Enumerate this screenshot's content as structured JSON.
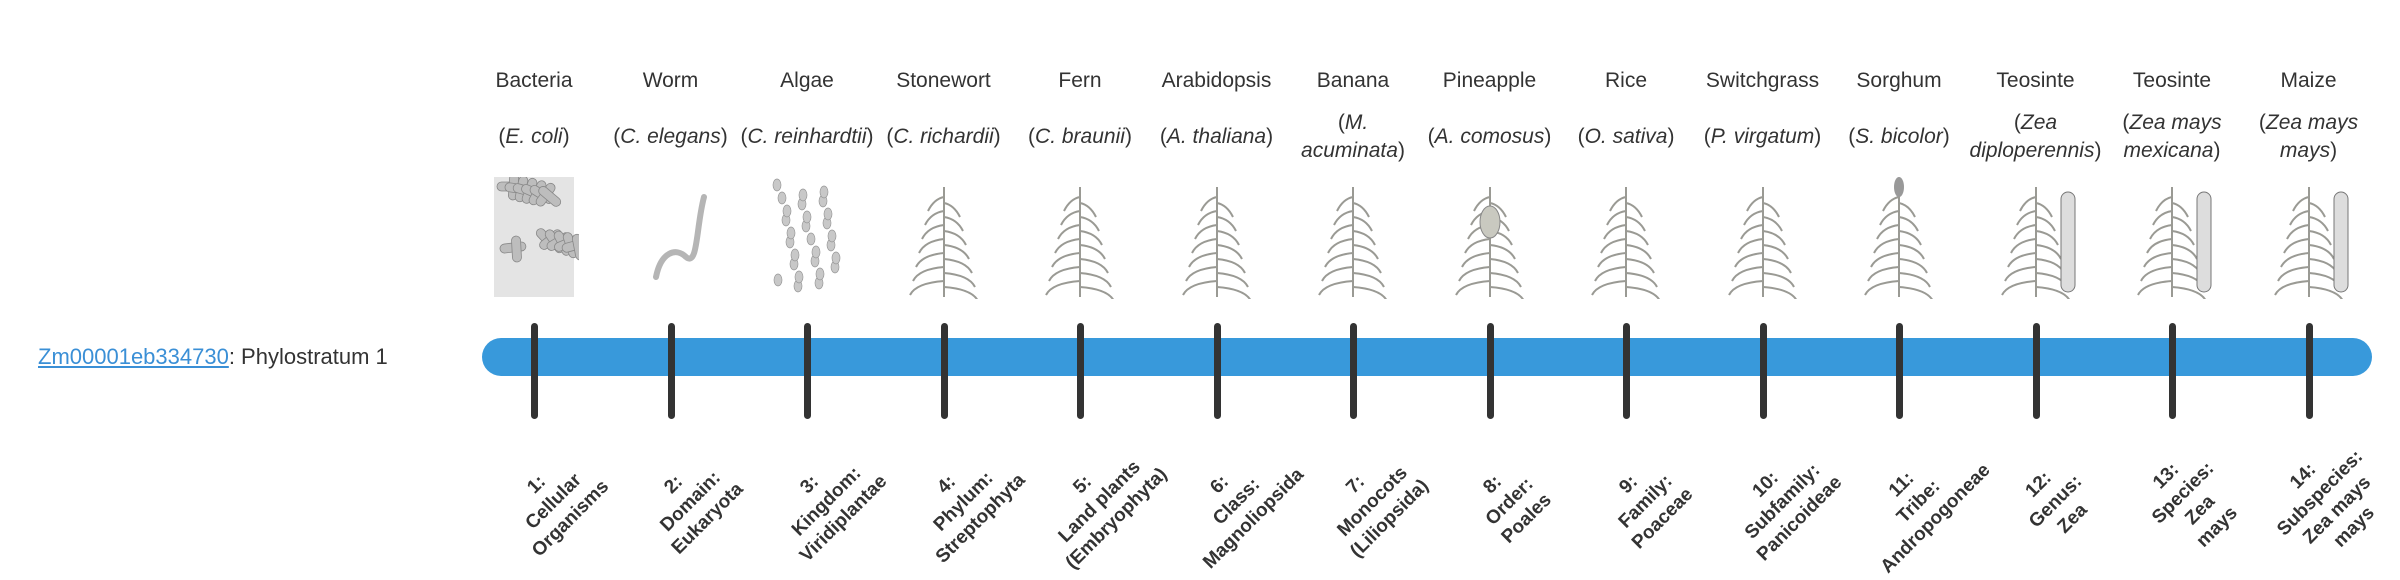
{
  "gene": {
    "id": "Zm00001eb334730",
    "suffix": ": Phylostratum 1",
    "link_color": "#3a8fd6"
  },
  "bar_color": "#3899db",
  "strata": [
    {
      "common": "Bacteria",
      "sci": "E. coli",
      "icon": "bacteria-icon",
      "rank": [
        "1:",
        "Cellular",
        "Organisms"
      ]
    },
    {
      "common": "Worm",
      "sci": "C. elegans",
      "icon": "worm-icon",
      "rank": [
        "2:",
        "Domain:",
        "Eukaryota"
      ]
    },
    {
      "common": "Algae",
      "sci": "C. reinhardtii",
      "icon": "algae-icon",
      "rank": [
        "3:",
        "Kingdom:",
        "Viridiplantae"
      ]
    },
    {
      "common": "Stonewort",
      "sci": "C. richardii",
      "icon": "stonewort-icon",
      "rank": [
        "4:",
        "Phylum:",
        "Streptophyta"
      ]
    },
    {
      "common": "Fern",
      "sci": "C. braunii",
      "icon": "fern-icon",
      "rank": [
        "5:",
        "Land plants",
        "(Embryophyta)"
      ]
    },
    {
      "common": "Arabidopsis",
      "sci": "A. thaliana",
      "icon": "arabidopsis-icon",
      "rank": [
        "6:",
        "Class:",
        "Magnoliopsida"
      ]
    },
    {
      "common": "Banana",
      "sci": "M. acuminata",
      "icon": "banana-icon",
      "rank": [
        "7:",
        "Monocots",
        "(Liliopsida)"
      ]
    },
    {
      "common": "Pineapple",
      "sci": "A. comosus",
      "icon": "pineapple-icon",
      "rank": [
        "8:",
        "Order:",
        "Poales"
      ]
    },
    {
      "common": "Rice",
      "sci": "O. sativa",
      "icon": "rice-icon",
      "rank": [
        "9:",
        "Family:",
        "Poaceae"
      ]
    },
    {
      "common": "Switchgrass",
      "sci": "P. virgatum",
      "icon": "switchgrass-icon",
      "rank": [
        "10:",
        "Subfamily:",
        "Panicoideae"
      ]
    },
    {
      "common": "Sorghum",
      "sci": "S. bicolor",
      "icon": "sorghum-icon",
      "rank": [
        "11:",
        "Tribe:",
        "Andropogoneae"
      ]
    },
    {
      "common": "Teosinte",
      "sci": "Zea diploperennis",
      "icon": "teosinte-icon",
      "rank": [
        "12:",
        "Genus:",
        "Zea"
      ]
    },
    {
      "common": "Teosinte",
      "sci": "Zea mays mexicana",
      "icon": "teosinte-icon",
      "rank": [
        "13:",
        "Species:",
        "Zea",
        "mays"
      ]
    },
    {
      "common": "Maize",
      "sci": "Zea mays mays",
      "icon": "maize-icon",
      "rank": [
        "14:",
        "Subspecies:",
        "Zea mays",
        "mays"
      ]
    }
  ]
}
